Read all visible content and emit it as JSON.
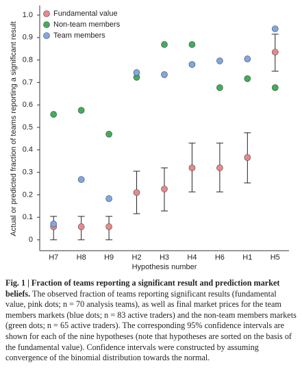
{
  "chart_data": {
    "type": "scatter",
    "y_label": "Actual or predicted fraction of teams reporting a significant result",
    "x_label": "Hypothesis number",
    "categories": [
      "H7",
      "H8",
      "H9",
      "H2",
      "H3",
      "H4",
      "H6",
      "H1",
      "H5"
    ],
    "ylim": [
      0,
      1.0
    ],
    "yticks": [
      0,
      0.1,
      0.2,
      0.3,
      0.4,
      0.5,
      0.6,
      0.7,
      0.8,
      0.9,
      {
        "value": 1,
        "label": "1.0"
      }
    ],
    "legend": "top-left",
    "series": [
      {
        "name": "Fundamental value",
        "color": "#e8888a",
        "values": [
          0.058,
          0.058,
          0.058,
          0.21,
          0.226,
          0.32,
          0.32,
          0.366,
          0.835
        ],
        "ci_low": [
          0,
          0,
          0,
          0.116,
          0.128,
          0.213,
          0.213,
          0.253,
          0.75
        ],
        "ci_high": [
          0.104,
          0.104,
          0.104,
          0.305,
          0.32,
          0.43,
          0.43,
          0.476,
          0.915
        ]
      },
      {
        "name": "Non-team members",
        "color": "#3fae5a",
        "values": [
          0.558,
          0.576,
          0.47,
          0.723,
          0.869,
          0.869,
          0.677,
          0.717,
          0.677
        ]
      },
      {
        "name": "Team members",
        "color": "#7fa6e6",
        "values": [
          0.07,
          0.268,
          0.183,
          0.744,
          0.735,
          0.78,
          0.796,
          0.805,
          0.939
        ]
      }
    ]
  },
  "caption": {
    "label": "Fig. 1 | ",
    "title": "Fraction of teams reporting a significant result and prediction market beliefs.",
    "text": " The observed fraction of teams reporting significant results (fundamental value, pink dots; n = 70 analysis teams), as well as final market prices for the team members markets (blue dots; n = 83 active traders) and the non-team members markets (green dots; n = 65 active traders). The corresponding 95% confidence intervals are shown for each of the nine hypotheses (note that hypotheses are sorted on the basis of the fundamental value). Confidence intervals were constructed by assuming convergence of the binomial distribution towards the normal."
  }
}
